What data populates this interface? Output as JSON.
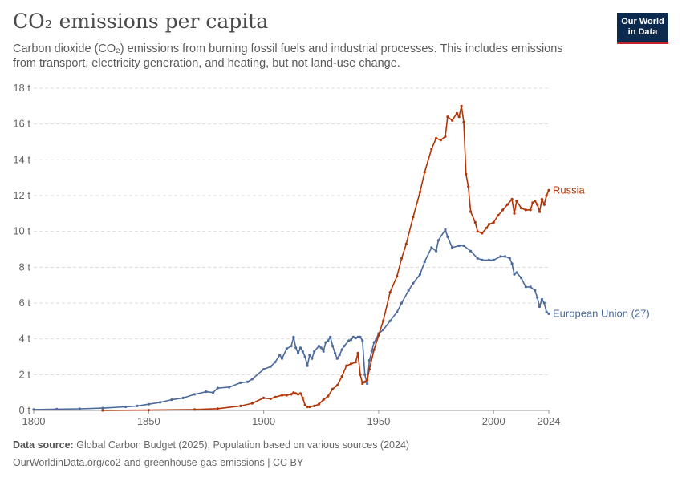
{
  "header": {
    "title": "CO₂ emissions per capita",
    "subtitle": "Carbon dioxide (CO₂) emissions from burning fossil fuels and industrial processes. This includes emissions from transport, electricity generation, and heating, but not land-use change."
  },
  "logo": {
    "line1": "Our World",
    "line2": "in Data"
  },
  "footer": {
    "source_label": "Data source:",
    "source_text": "Global Carbon Budget (2025); Population based on various sources (2024)",
    "url_text": "OurWorldinData.org/co2-and-greenhouse-gas-emissions | CC BY"
  },
  "chart_data": {
    "type": "line",
    "title": "CO₂ emissions per capita",
    "ylim": [
      0,
      18
    ],
    "yticks": [
      0,
      2,
      4,
      6,
      8,
      10,
      12,
      14,
      16,
      18
    ],
    "ytick_labels": [
      "0 t",
      "2 t",
      "4 t",
      "6 t",
      "8 t",
      "10 t",
      "12 t",
      "14 t",
      "16 t",
      "18 t"
    ],
    "xlim": [
      1800,
      2024
    ],
    "xticks": [
      1800,
      1850,
      1900,
      1950,
      2000,
      2024
    ],
    "xtick_labels": [
      "1800",
      "1850",
      "1900",
      "1950",
      "2000",
      "2024"
    ],
    "grid": "horizontal dashed",
    "legend": "labels at line ends",
    "series": [
      {
        "name": "European Union (27)",
        "color": "#4c6a9c",
        "points": [
          [
            1800,
            0.05
          ],
          [
            1810,
            0.07
          ],
          [
            1820,
            0.09
          ],
          [
            1830,
            0.13
          ],
          [
            1840,
            0.2
          ],
          [
            1845,
            0.25
          ],
          [
            1850,
            0.35
          ],
          [
            1855,
            0.45
          ],
          [
            1860,
            0.6
          ],
          [
            1865,
            0.7
          ],
          [
            1870,
            0.9
          ],
          [
            1875,
            1.05
          ],
          [
            1878,
            1.0
          ],
          [
            1880,
            1.25
          ],
          [
            1885,
            1.3
          ],
          [
            1890,
            1.55
          ],
          [
            1893,
            1.6
          ],
          [
            1895,
            1.75
          ],
          [
            1900,
            2.3
          ],
          [
            1903,
            2.45
          ],
          [
            1905,
            2.7
          ],
          [
            1907,
            3.1
          ],
          [
            1908,
            2.9
          ],
          [
            1910,
            3.45
          ],
          [
            1912,
            3.6
          ],
          [
            1913,
            4.1
          ],
          [
            1914,
            3.5
          ],
          [
            1915,
            3.2
          ],
          [
            1916,
            3.5
          ],
          [
            1917,
            3.3
          ],
          [
            1918,
            3.0
          ],
          [
            1919,
            2.5
          ],
          [
            1920,
            3.1
          ],
          [
            1921,
            2.9
          ],
          [
            1922,
            3.3
          ],
          [
            1924,
            3.6
          ],
          [
            1925,
            3.5
          ],
          [
            1926,
            3.3
          ],
          [
            1927,
            3.8
          ],
          [
            1928,
            3.9
          ],
          [
            1929,
            4.1
          ],
          [
            1930,
            3.6
          ],
          [
            1931,
            3.2
          ],
          [
            1932,
            2.9
          ],
          [
            1933,
            3.1
          ],
          [
            1934,
            3.4
          ],
          [
            1935,
            3.6
          ],
          [
            1937,
            3.9
          ],
          [
            1938,
            3.95
          ],
          [
            1939,
            4.1
          ],
          [
            1940,
            4.05
          ],
          [
            1941,
            4.1
          ],
          [
            1942,
            4.1
          ],
          [
            1943,
            3.9
          ],
          [
            1944,
            2.0
          ],
          [
            1945,
            1.5
          ],
          [
            1946,
            2.8
          ],
          [
            1947,
            3.3
          ],
          [
            1948,
            3.8
          ],
          [
            1949,
            4.0
          ],
          [
            1950,
            4.3
          ],
          [
            1952,
            4.5
          ],
          [
            1955,
            5.0
          ],
          [
            1958,
            5.5
          ],
          [
            1960,
            6.0
          ],
          [
            1963,
            6.7
          ],
          [
            1965,
            7.1
          ],
          [
            1968,
            7.6
          ],
          [
            1970,
            8.3
          ],
          [
            1973,
            9.1
          ],
          [
            1975,
            8.9
          ],
          [
            1976,
            9.5
          ],
          [
            1979,
            10.1
          ],
          [
            1980,
            9.7
          ],
          [
            1982,
            9.1
          ],
          [
            1985,
            9.2
          ],
          [
            1987,
            9.2
          ],
          [
            1990,
            8.9
          ],
          [
            1993,
            8.5
          ],
          [
            1995,
            8.4
          ],
          [
            1998,
            8.4
          ],
          [
            2000,
            8.4
          ],
          [
            2003,
            8.6
          ],
          [
            2005,
            8.6
          ],
          [
            2007,
            8.5
          ],
          [
            2008,
            8.2
          ],
          [
            2009,
            7.6
          ],
          [
            2010,
            7.7
          ],
          [
            2012,
            7.4
          ],
          [
            2014,
            6.9
          ],
          [
            2016,
            6.9
          ],
          [
            2018,
            6.7
          ],
          [
            2019,
            6.3
          ],
          [
            2020,
            5.8
          ],
          [
            2021,
            6.2
          ],
          [
            2022,
            6.0
          ],
          [
            2023,
            5.5
          ],
          [
            2024,
            5.4
          ]
        ]
      },
      {
        "name": "Russia",
        "color": "#b13507",
        "points": [
          [
            1830,
            0.0
          ],
          [
            1850,
            0.02
          ],
          [
            1870,
            0.05
          ],
          [
            1880,
            0.1
          ],
          [
            1890,
            0.25
          ],
          [
            1895,
            0.4
          ],
          [
            1900,
            0.7
          ],
          [
            1903,
            0.65
          ],
          [
            1905,
            0.75
          ],
          [
            1908,
            0.85
          ],
          [
            1910,
            0.85
          ],
          [
            1912,
            0.9
          ],
          [
            1913,
            1.0
          ],
          [
            1914,
            0.95
          ],
          [
            1915,
            0.9
          ],
          [
            1916,
            0.95
          ],
          [
            1917,
            0.7
          ],
          [
            1918,
            0.3
          ],
          [
            1919,
            0.2
          ],
          [
            1920,
            0.2
          ],
          [
            1922,
            0.25
          ],
          [
            1924,
            0.35
          ],
          [
            1926,
            0.6
          ],
          [
            1928,
            0.8
          ],
          [
            1930,
            1.2
          ],
          [
            1932,
            1.4
          ],
          [
            1934,
            1.9
          ],
          [
            1936,
            2.5
          ],
          [
            1938,
            2.6
          ],
          [
            1940,
            2.7
          ],
          [
            1941,
            3.2
          ],
          [
            1942,
            2.0
          ],
          [
            1943,
            1.5
          ],
          [
            1944,
            1.6
          ],
          [
            1945,
            1.7
          ],
          [
            1946,
            2.3
          ],
          [
            1948,
            3.4
          ],
          [
            1950,
            4.2
          ],
          [
            1952,
            5.0
          ],
          [
            1955,
            6.6
          ],
          [
            1958,
            7.5
          ],
          [
            1960,
            8.5
          ],
          [
            1962,
            9.3
          ],
          [
            1965,
            10.8
          ],
          [
            1968,
            12.2
          ],
          [
            1970,
            13.3
          ],
          [
            1973,
            14.6
          ],
          [
            1975,
            15.2
          ],
          [
            1977,
            15.1
          ],
          [
            1979,
            15.3
          ],
          [
            1980,
            16.4
          ],
          [
            1982,
            16.2
          ],
          [
            1984,
            16.6
          ],
          [
            1985,
            16.4
          ],
          [
            1986,
            17.0
          ],
          [
            1987,
            16.1
          ],
          [
            1988,
            13.2
          ],
          [
            1989,
            12.5
          ],
          [
            1990,
            11.1
          ],
          [
            1992,
            10.5
          ],
          [
            1993,
            10.0
          ],
          [
            1995,
            9.9
          ],
          [
            1997,
            10.2
          ],
          [
            1998,
            10.4
          ],
          [
            2000,
            10.5
          ],
          [
            2002,
            10.9
          ],
          [
            2004,
            11.2
          ],
          [
            2006,
            11.5
          ],
          [
            2008,
            11.8
          ],
          [
            2009,
            11.0
          ],
          [
            2010,
            11.7
          ],
          [
            2012,
            11.3
          ],
          [
            2014,
            11.2
          ],
          [
            2016,
            11.2
          ],
          [
            2017,
            11.6
          ],
          [
            2018,
            11.7
          ],
          [
            2019,
            11.5
          ],
          [
            2020,
            11.1
          ],
          [
            2021,
            11.8
          ],
          [
            2022,
            11.5
          ],
          [
            2023,
            12.0
          ],
          [
            2024,
            12.3
          ]
        ]
      }
    ]
  }
}
